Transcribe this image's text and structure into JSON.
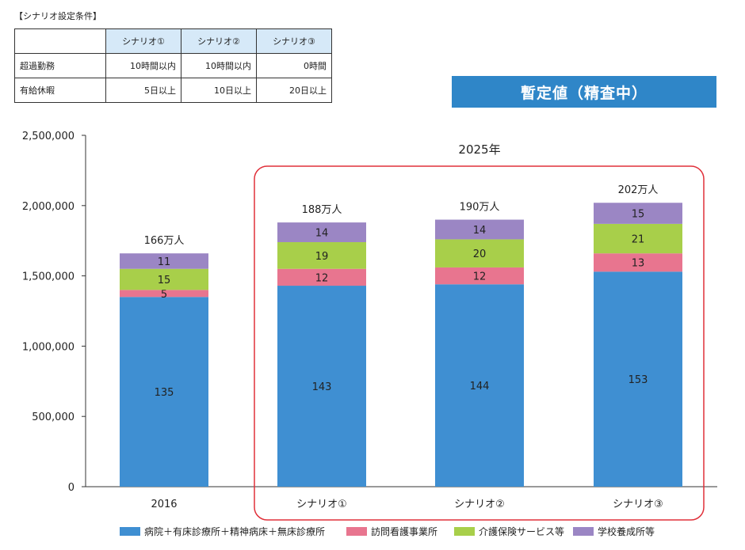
{
  "conditions": {
    "title": "【シナリオ設定条件】",
    "headers": [
      "",
      "シナリオ①",
      "シナリオ②",
      "シナリオ③"
    ],
    "rows": [
      {
        "label": "超過勤務",
        "values": [
          "10時間以内",
          "10時間以内",
          "0時間"
        ]
      },
      {
        "label": "有給休暇",
        "values": [
          "5日以上",
          "10日以上",
          "20日以上"
        ]
      }
    ]
  },
  "banner": "暫定値（精査中）",
  "chart_data": {
    "type": "bar",
    "stacked": true,
    "categories": [
      "2016",
      "シナリオ①",
      "シナリオ②",
      "シナリオ③"
    ],
    "series": [
      {
        "name": "病院＋有床診療所＋精神病床＋無床診療所",
        "color": "#3f8fd2",
        "values": [
          135,
          143,
          144,
          153
        ]
      },
      {
        "name": "訪問看護事業所",
        "color": "#e8758f",
        "values": [
          5,
          12,
          12,
          13
        ]
      },
      {
        "name": "介護保険サービス等",
        "color": "#a8cf4a",
        "values": [
          15,
          19,
          20,
          21
        ]
      },
      {
        "name": "学校養成所等",
        "color": "#9b86c4",
        "values": [
          11,
          14,
          14,
          15
        ]
      }
    ],
    "totals": [
      "166万人",
      "188万人",
      "190万人",
      "202万人"
    ],
    "yticks": [
      "0",
      "500,000",
      "1,000,000",
      "1,500,000",
      "2,000,000",
      "2,500,000"
    ],
    "ylim": [
      0,
      2500000
    ],
    "unit_multiplier": 10000,
    "group_label": "2025年",
    "legend_position": "bottom"
  }
}
